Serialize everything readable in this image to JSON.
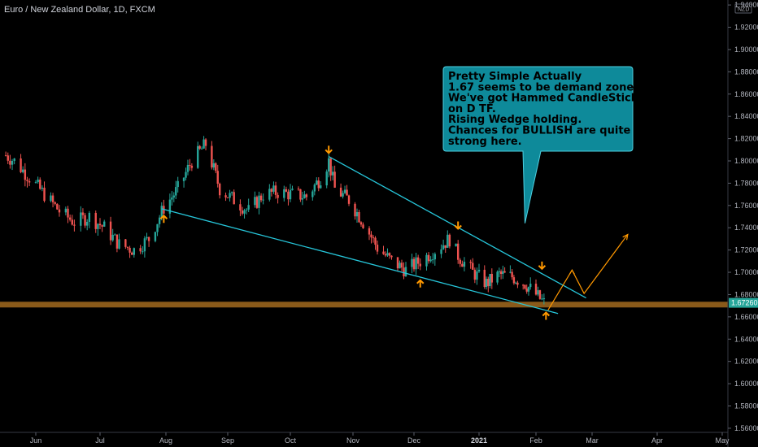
{
  "chart_title": "Euro / New Zealand Dollar, 1D, FXCM",
  "currency_badge": "NZD",
  "last_price_label": "1.67260",
  "colors": {
    "background": "#000000",
    "up": "#26a69a",
    "down": "#ef5350",
    "trendline": "#26c6da",
    "zone": "#8a5a1a",
    "arrow": "#ff9800",
    "callout_fill": "#0e8a9a",
    "callout_border": "#4dd0e1",
    "price_tag": "#26a69a"
  },
  "chart_data": {
    "type": "candlestick",
    "symbol": "EURNZD",
    "timeframe": "1D",
    "x_labels": [
      "Jun",
      "Jul",
      "Aug",
      "Sep",
      "Oct",
      "Nov",
      "Dec",
      "2021",
      "Feb",
      "Mar",
      "Apr",
      "May"
    ],
    "y_ticks": [
      "1.94000",
      "1.92000",
      "1.90000",
      "1.88000",
      "1.86000",
      "1.84000",
      "1.82000",
      "1.80000",
      "1.78000",
      "1.76000",
      "1.74000",
      "1.72000",
      "1.70000",
      "1.68000",
      "1.66000",
      "1.64000",
      "1.62000",
      "1.60000",
      "1.58000",
      "1.56000"
    ],
    "ylim": [
      1.549,
      1.943
    ],
    "last_price": 1.6726,
    "close_path": [
      {
        "date": "2020-05-18",
        "close": 1.805
      },
      {
        "date": "2020-05-22",
        "close": 1.8
      },
      {
        "date": "2020-05-29",
        "close": 1.785
      },
      {
        "date": "2020-06-05",
        "close": 1.77
      },
      {
        "date": "2020-06-12",
        "close": 1.755
      },
      {
        "date": "2020-06-19",
        "close": 1.745
      },
      {
        "date": "2020-06-26",
        "close": 1.75
      },
      {
        "date": "2020-07-03",
        "close": 1.74
      },
      {
        "date": "2020-07-10",
        "close": 1.725
      },
      {
        "date": "2020-07-17",
        "close": 1.72
      },
      {
        "date": "2020-07-24",
        "close": 1.73
      },
      {
        "date": "2020-07-31",
        "close": 1.758
      },
      {
        "date": "2020-08-07",
        "close": 1.775
      },
      {
        "date": "2020-08-14",
        "close": 1.8
      },
      {
        "date": "2020-08-21",
        "close": 1.815
      },
      {
        "date": "2020-08-28",
        "close": 1.775
      },
      {
        "date": "2020-09-04",
        "close": 1.765
      },
      {
        "date": "2020-09-11",
        "close": 1.755
      },
      {
        "date": "2020-09-18",
        "close": 1.77
      },
      {
        "date": "2020-09-25",
        "close": 1.772
      },
      {
        "date": "2020-10-02",
        "close": 1.77
      },
      {
        "date": "2020-10-09",
        "close": 1.768
      },
      {
        "date": "2020-10-16",
        "close": 1.785
      },
      {
        "date": "2020-10-20",
        "close": 1.8
      },
      {
        "date": "2020-10-23",
        "close": 1.775
      },
      {
        "date": "2020-10-30",
        "close": 1.765
      },
      {
        "date": "2020-11-06",
        "close": 1.745
      },
      {
        "date": "2020-11-13",
        "close": 1.722
      },
      {
        "date": "2020-11-20",
        "close": 1.71
      },
      {
        "date": "2020-11-27",
        "close": 1.702
      },
      {
        "date": "2020-12-04",
        "close": 1.71
      },
      {
        "date": "2020-12-11",
        "close": 1.72
      },
      {
        "date": "2020-12-18",
        "close": 1.73
      },
      {
        "date": "2020-12-22",
        "close": 1.715
      },
      {
        "date": "2020-12-29",
        "close": 1.7
      },
      {
        "date": "2021-01-05",
        "close": 1.69
      },
      {
        "date": "2021-01-12",
        "close": 1.698
      },
      {
        "date": "2021-01-19",
        "close": 1.696
      },
      {
        "date": "2021-01-26",
        "close": 1.69
      },
      {
        "date": "2021-02-01",
        "close": 1.68
      },
      {
        "date": "2021-02-05",
        "close": 1.6726
      }
    ],
    "annotations": {
      "demand_zone": 1.671,
      "upper_trendline": [
        {
          "date": "2020-10-20",
          "price": 1.804
        },
        {
          "date": "2021-02-26",
          "price": 1.677
        }
      ],
      "lower_trendline": [
        {
          "date": "2020-07-30",
          "price": 1.757
        },
        {
          "date": "2021-02-12",
          "price": 1.663
        }
      ],
      "projection": [
        {
          "date": "2021-02-07",
          "price": 1.666
        },
        {
          "date": "2021-02-19",
          "price": 1.702
        },
        {
          "date": "2021-02-25",
          "price": 1.681
        },
        {
          "date": "2021-03-18",
          "price": 1.734
        }
      ],
      "arrows_down": [
        {
          "date": "2020-10-20",
          "price": 1.81
        },
        {
          "date": "2020-12-22",
          "price": 1.742
        },
        {
          "date": "2021-02-04",
          "price": 1.706
        }
      ],
      "arrows_up": [
        {
          "date": "2020-07-31",
          "price": 1.748
        },
        {
          "date": "2020-12-04",
          "price": 1.69
        },
        {
          "date": "2021-02-06",
          "price": 1.661
        }
      ],
      "callout_pointer": {
        "date": "2021-01-26",
        "price": 1.744
      },
      "callout_lines": [
        "Pretty Simple Actually",
        "1.67 seems to be demand zone",
        "We've got Hammed CandleStick",
        "on D TF.",
        "Rising Wedge holding.",
        "Chances for BULLISH are quite",
        "strong here."
      ]
    }
  }
}
